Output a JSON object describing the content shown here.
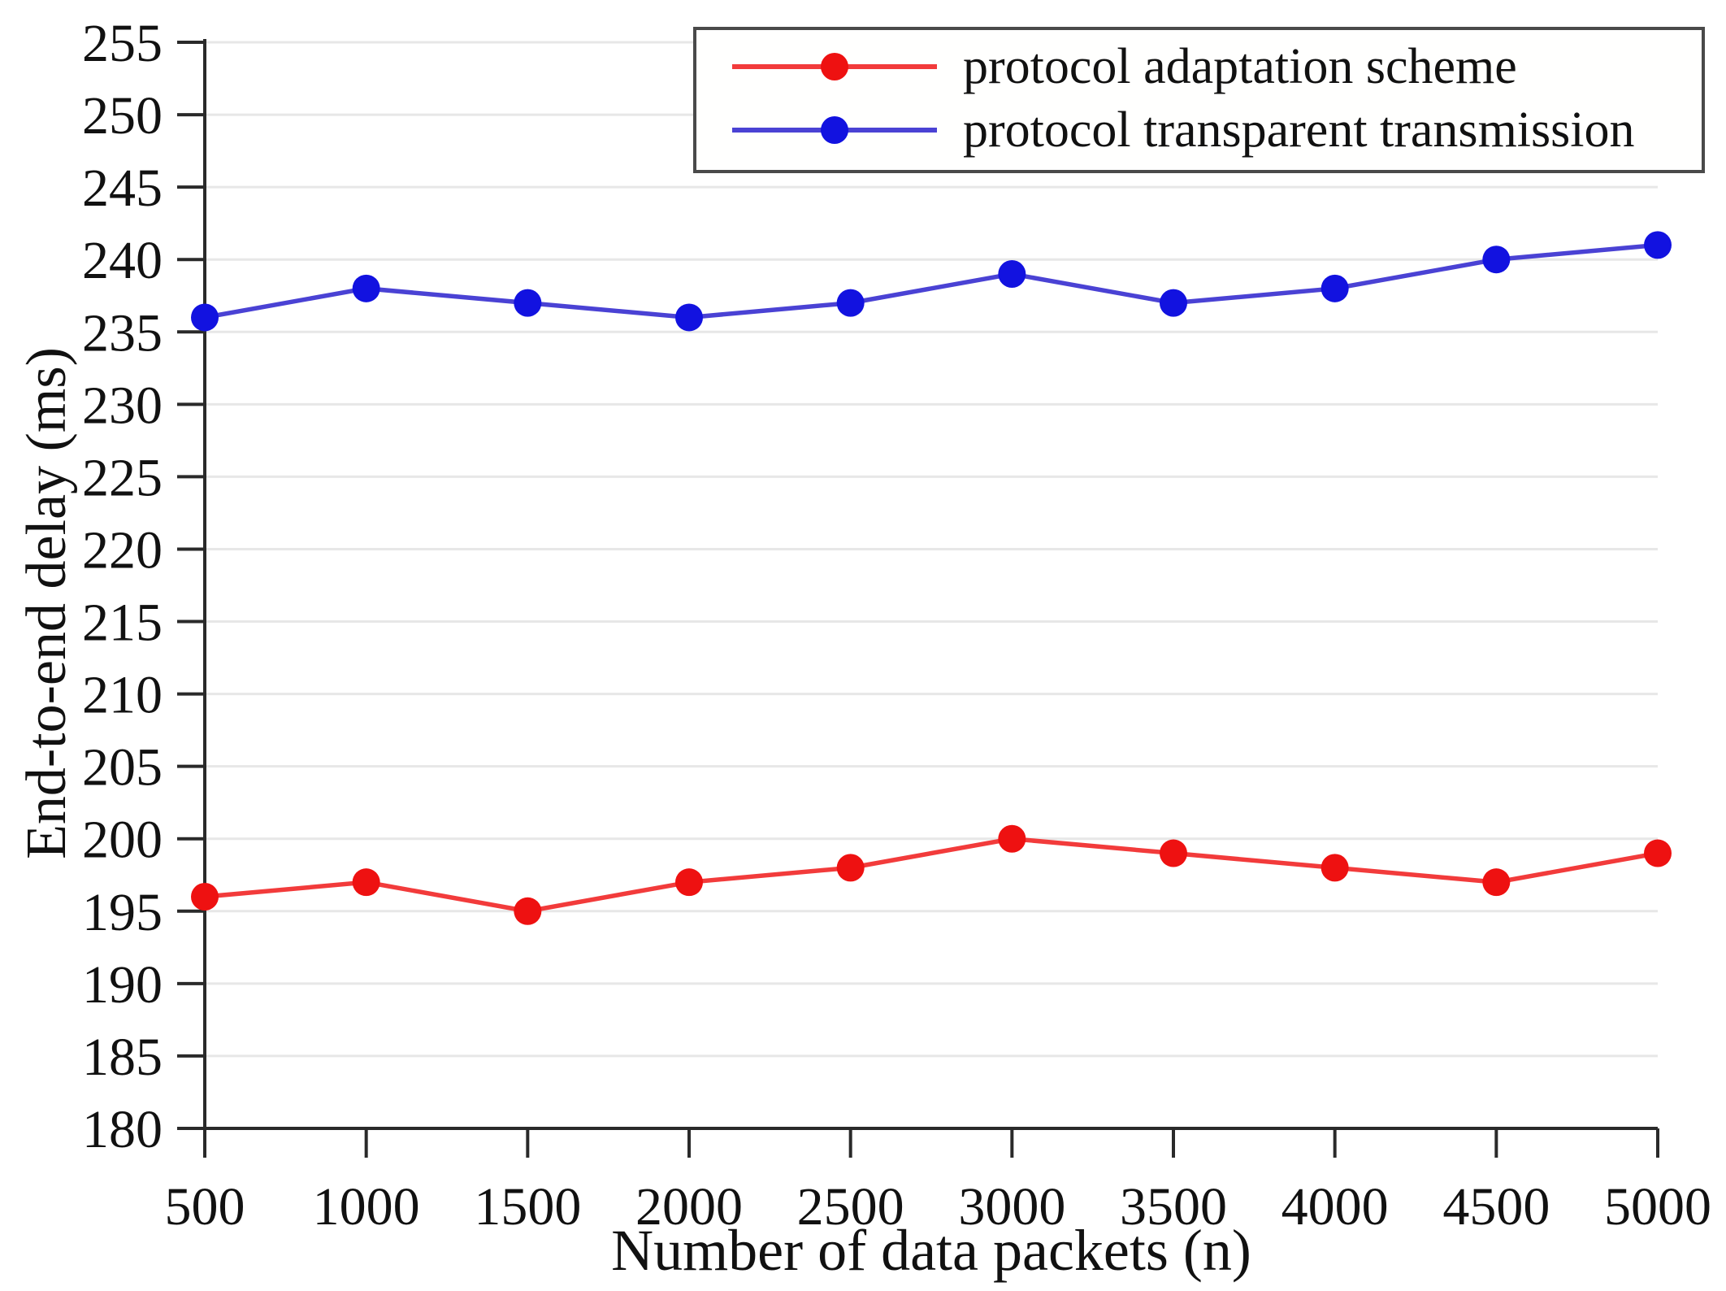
{
  "figure": {
    "background": "#ffffff"
  },
  "chart_data": {
    "type": "line",
    "title": "",
    "xlabel": "Number of data packets (n)",
    "ylabel": "End-to-end delay (ms)",
    "x": [
      500,
      1000,
      1500,
      2000,
      2500,
      3000,
      3500,
      4000,
      4500,
      5000
    ],
    "series": [
      {
        "name": "protocol adaptation scheme",
        "marker": "circle",
        "marker_color": "#ee1111",
        "line_color": "#f23b3b",
        "values": [
          196,
          197,
          195,
          197,
          198,
          200,
          199,
          198,
          197,
          199
        ]
      },
      {
        "name": "protocol transparent transmission",
        "marker": "circle",
        "marker_color": "#1212e0",
        "line_color": "#4a42d4",
        "values": [
          236,
          238,
          237,
          236,
          237,
          239,
          237,
          238,
          240,
          241
        ]
      }
    ],
    "ylim": [
      180,
      255
    ],
    "ytick_step": 5,
    "xlim": [
      500,
      5000
    ],
    "grid": "horizontal",
    "legend_position": "top-right"
  },
  "style": {
    "grid_color": "#e7e7e7",
    "axis_color": "#2a2a2a",
    "text_color": "#111111",
    "legend_border_color": "#4a4a4a"
  }
}
